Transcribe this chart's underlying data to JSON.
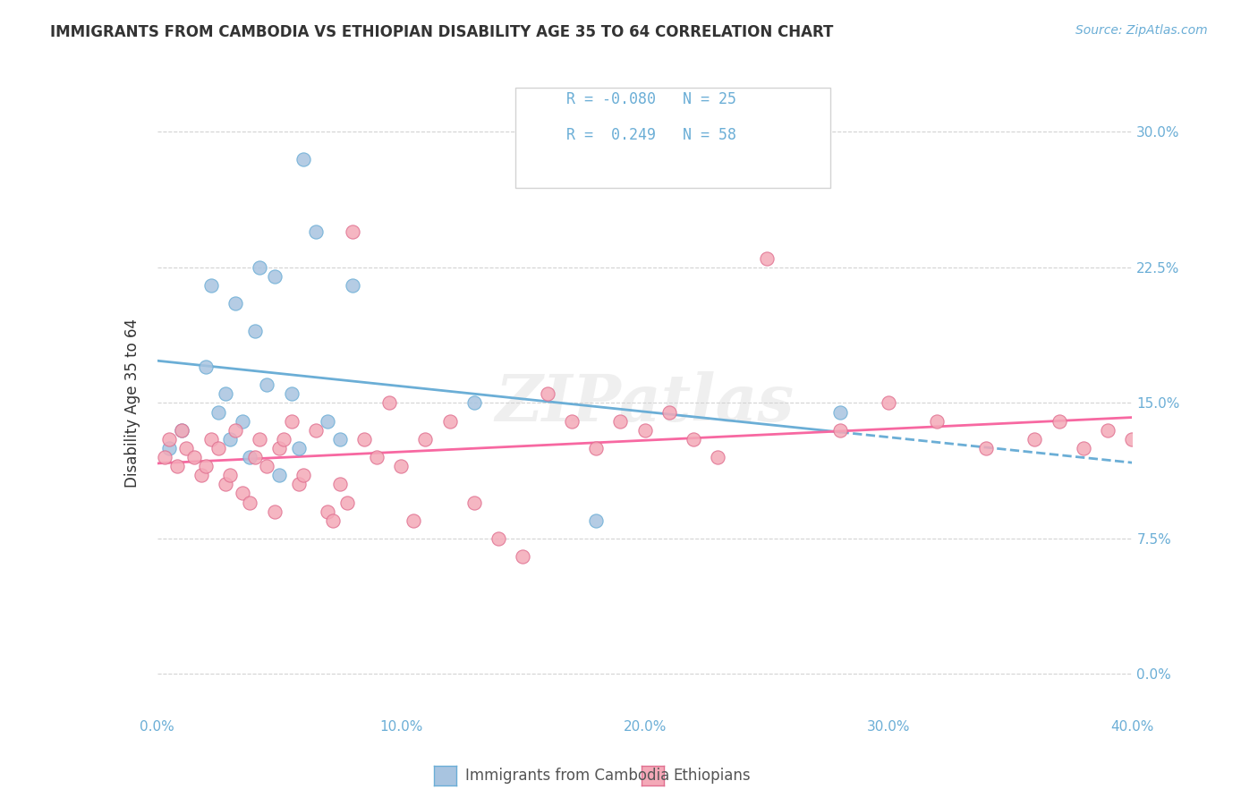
{
  "title": "IMMIGRANTS FROM CAMBODIA VS ETHIOPIAN DISABILITY AGE 35 TO 64 CORRELATION CHART",
  "source": "Source: ZipAtlas.com",
  "ylabel": "Disability Age 35 to 64",
  "ylabel_tick_vals": [
    0.0,
    7.5,
    15.0,
    22.5,
    30.0
  ],
  "xlim": [
    0.0,
    40.0
  ],
  "ylim": [
    -2.0,
    32.0
  ],
  "legend_label1": "Immigrants from Cambodia",
  "legend_label2": "Ethiopians",
  "color_cambodia": "#a8c4e0",
  "color_ethiopia": "#f4a9b8",
  "color_line_cambodia": "#6baed6",
  "color_line_ethiopia": "#f768a1",
  "watermark": "ZIPatlas",
  "cambodia_points_x": [
    0.5,
    1.0,
    2.0,
    2.2,
    2.5,
    2.8,
    3.0,
    3.2,
    3.5,
    3.8,
    4.0,
    4.2,
    4.5,
    4.8,
    5.0,
    5.5,
    5.8,
    6.0,
    6.5,
    7.0,
    7.5,
    8.0,
    13.0,
    18.0,
    28.0
  ],
  "cambodia_points_y": [
    12.5,
    13.5,
    17.0,
    21.5,
    14.5,
    15.5,
    13.0,
    20.5,
    14.0,
    12.0,
    19.0,
    22.5,
    16.0,
    22.0,
    11.0,
    15.5,
    12.5,
    28.5,
    24.5,
    14.0,
    13.0,
    21.5,
    15.0,
    8.5,
    14.5
  ],
  "ethiopia_points_x": [
    0.3,
    0.5,
    0.8,
    1.0,
    1.2,
    1.5,
    1.8,
    2.0,
    2.2,
    2.5,
    2.8,
    3.0,
    3.2,
    3.5,
    3.8,
    4.0,
    4.2,
    4.5,
    4.8,
    5.0,
    5.2,
    5.5,
    5.8,
    6.0,
    6.5,
    7.0,
    7.2,
    7.5,
    7.8,
    8.0,
    8.5,
    9.0,
    9.5,
    10.0,
    10.5,
    11.0,
    12.0,
    13.0,
    14.0,
    15.0,
    16.0,
    17.0,
    18.0,
    19.0,
    20.0,
    21.0,
    22.0,
    23.0,
    25.0,
    28.0,
    30.0,
    32.0,
    34.0,
    36.0,
    37.0,
    38.0,
    39.0,
    40.0
  ],
  "ethiopia_points_y": [
    12.0,
    13.0,
    11.5,
    13.5,
    12.5,
    12.0,
    11.0,
    11.5,
    13.0,
    12.5,
    10.5,
    11.0,
    13.5,
    10.0,
    9.5,
    12.0,
    13.0,
    11.5,
    9.0,
    12.5,
    13.0,
    14.0,
    10.5,
    11.0,
    13.5,
    9.0,
    8.5,
    10.5,
    9.5,
    24.5,
    13.0,
    12.0,
    15.0,
    11.5,
    8.5,
    13.0,
    14.0,
    9.5,
    7.5,
    6.5,
    15.5,
    14.0,
    12.5,
    14.0,
    13.5,
    14.5,
    13.0,
    12.0,
    23.0,
    13.5,
    15.0,
    14.0,
    12.5,
    13.0,
    14.0,
    12.5,
    13.5,
    13.0
  ]
}
